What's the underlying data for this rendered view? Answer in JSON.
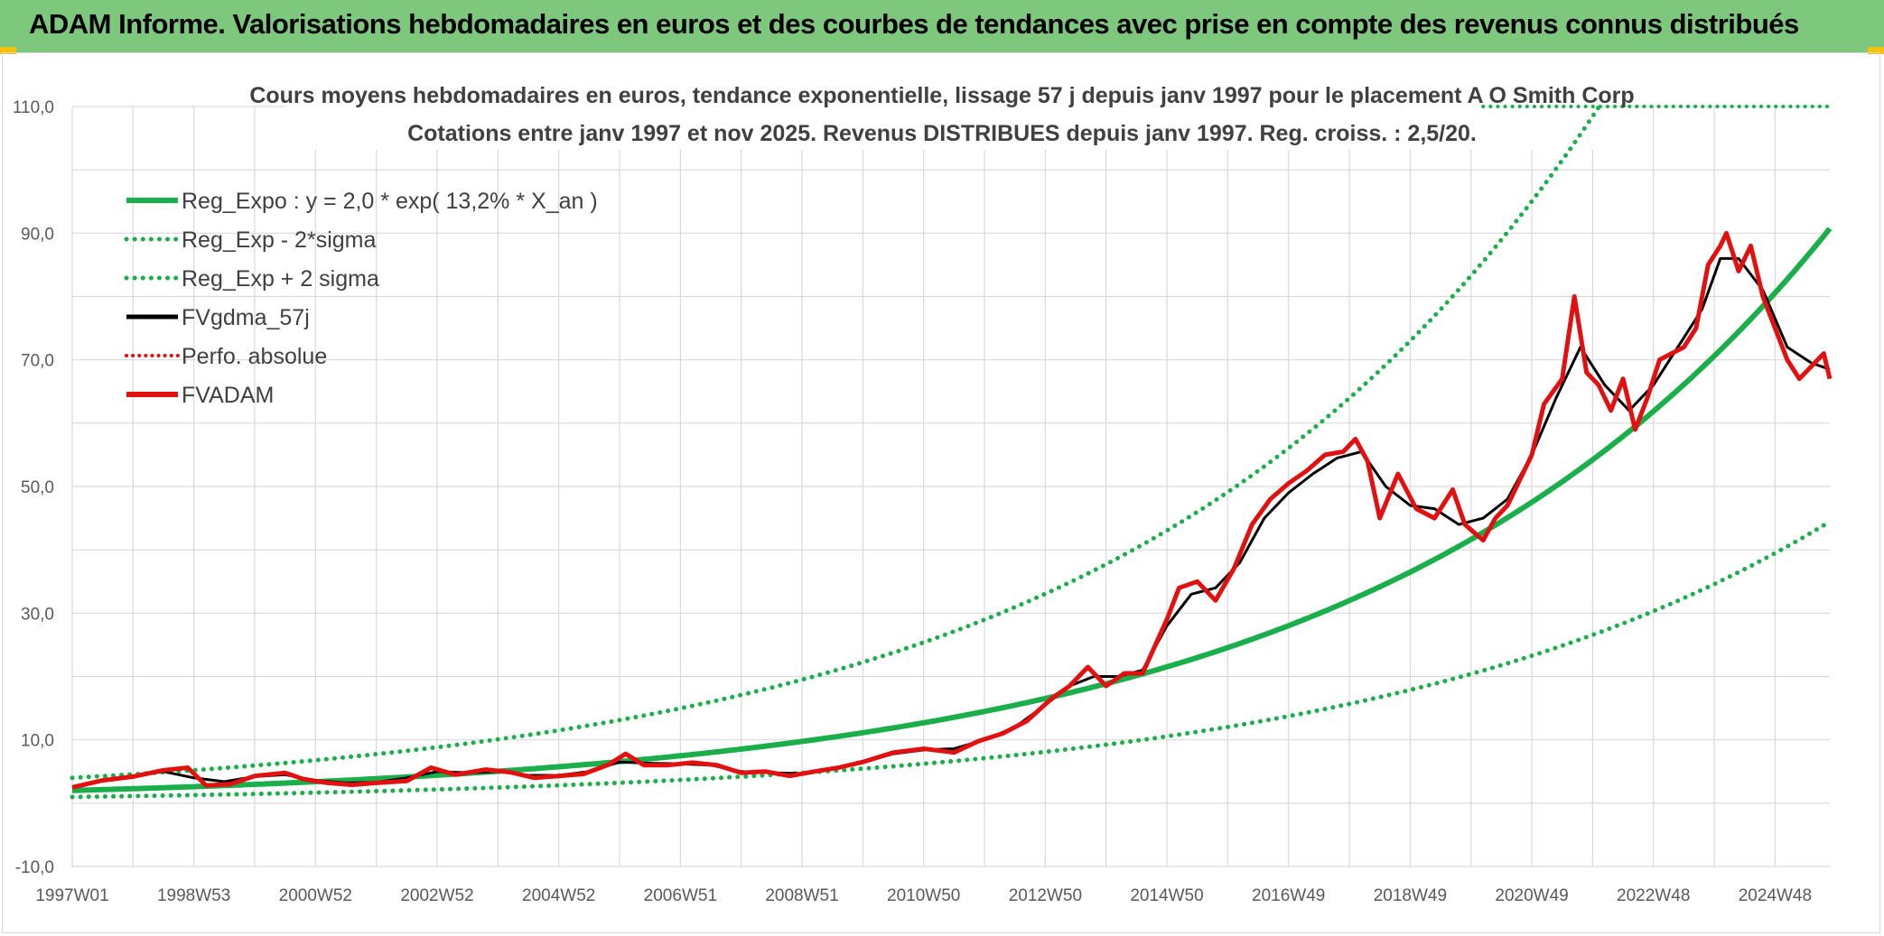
{
  "banner": {
    "title": "ADAM Informe. Valorisations hebdomadaires en euros et des courbes de tendances avec prise en compte des revenus connus distribués"
  },
  "colors": {
    "banner": "#7ec87e",
    "reg_expo": "#1aaf4b",
    "sigma": "#1aaf4b",
    "fvgdma": "#000000",
    "perfo": "#e31010",
    "fvadam": "#e31010",
    "grid": "#d9d9d9",
    "corner": "#f4c20d"
  },
  "chart_data": {
    "type": "line",
    "title": "Cours moyens hebdomadaires en euros, tendance exponentielle, lissage 57 j depuis janv 1997 pour le placement A O Smith Corp",
    "subtitle": "Cotations entre janv 1997 et nov 2025. Revenus DISTRIBUES depuis janv 1997. Reg. croiss. : 2,5/20.",
    "xlabel": "",
    "ylabel": "",
    "ylim": [
      -10,
      110
    ],
    "xlim": [
      1997.0,
      2025.9
    ],
    "grid": true,
    "legend_position": "top-left",
    "y_ticks": [
      "110,0",
      "90,0",
      "70,0",
      "50,0",
      "30,0",
      "10,0",
      "-10,0"
    ],
    "y_tick_values": [
      110,
      90,
      70,
      50,
      30,
      10,
      -10
    ],
    "x_ticks": [
      "1997W01",
      "1998W53",
      "2000W52",
      "2002W52",
      "2004W52",
      "2006W51",
      "2008W51",
      "2010W50",
      "2012W50",
      "2014W50",
      "2016W49",
      "2018W49",
      "2020W49",
      "2022W48",
      "2024W48"
    ],
    "x_tick_values": [
      1997.0,
      1999.0,
      2001.0,
      2003.0,
      2005.0,
      2007.0,
      2009.0,
      2011.0,
      2013.0,
      2015.0,
      2017.0,
      2019.0,
      2021.0,
      2023.0,
      2025.0
    ],
    "legend": [
      "Reg_Expo : y = 2,0 * exp( 13,2% *  X_an )",
      "Reg_Exp - 2*sigma",
      "Reg_Exp + 2 sigma",
      "FVgdma_57j",
      "Perfo. absolue",
      "FVADAM"
    ],
    "regression": {
      "a": 2.0,
      "rate": 0.132,
      "start_year": 1997.0,
      "lower_factor": 0.49,
      "upper_factor": 2.0
    },
    "series": [
      {
        "name": "FVADAM",
        "x": [
          1997.0,
          1997.5,
          1998.0,
          1998.5,
          1998.9,
          1999.2,
          1999.6,
          2000.0,
          2000.5,
          2000.8,
          2001.2,
          2001.6,
          2002.0,
          2002.5,
          2002.9,
          2003.3,
          2003.8,
          2004.2,
          2004.6,
          2005.0,
          2005.4,
          2005.8,
          2006.1,
          2006.4,
          2006.8,
          2007.2,
          2007.6,
          2008.0,
          2008.4,
          2008.8,
          2009.2,
          2009.6,
          2010.0,
          2010.5,
          2011.0,
          2011.5,
          2011.9,
          2012.3,
          2012.7,
          2013.1,
          2013.4,
          2013.7,
          2014.0,
          2014.3,
          2014.6,
          2015.0,
          2015.2,
          2015.5,
          2015.8,
          2016.1,
          2016.4,
          2016.7,
          2017.0,
          2017.3,
          2017.6,
          2017.9,
          2018.1,
          2018.3,
          2018.5,
          2018.8,
          2019.1,
          2019.4,
          2019.7,
          2019.9,
          2020.2,
          2020.4,
          2020.6,
          2020.8,
          2021.0,
          2021.2,
          2021.5,
          2021.7,
          2021.9,
          2022.1,
          2022.3,
          2022.5,
          2022.7,
          2022.9,
          2023.1,
          2023.3,
          2023.5,
          2023.7,
          2023.9,
          2024.1,
          2024.2,
          2024.4,
          2024.6,
          2024.8,
          2025.0,
          2025.2,
          2025.4,
          2025.6,
          2025.8,
          2025.9
        ],
        "y": [
          2.5,
          3.6,
          4.2,
          5.2,
          5.6,
          2.8,
          3.0,
          4.3,
          4.8,
          3.8,
          3.2,
          2.9,
          3.2,
          3.5,
          5.6,
          4.5,
          5.3,
          4.9,
          4.0,
          4.3,
          4.6,
          6.0,
          7.8,
          6.0,
          6.0,
          6.4,
          6.0,
          4.8,
          5.0,
          4.3,
          5.0,
          5.6,
          6.5,
          8.0,
          8.6,
          8.0,
          9.8,
          11.0,
          13.0,
          16.5,
          18.5,
          21.5,
          18.5,
          20.5,
          20.5,
          29.0,
          34.0,
          35.0,
          32.0,
          37.0,
          44.0,
          48.0,
          50.5,
          52.5,
          55.0,
          55.5,
          57.5,
          54.0,
          45.0,
          52.0,
          46.5,
          45.0,
          49.5,
          44.0,
          41.5,
          45.0,
          47.0,
          51.0,
          55.0,
          63.0,
          67.0,
          80.0,
          68.0,
          66.0,
          62.0,
          67.0,
          59.0,
          64.0,
          70.0,
          71.0,
          72.0,
          75.0,
          85.0,
          88.0,
          90.0,
          84.0,
          88.0,
          80.0,
          75.0,
          70.0,
          67.0,
          69.0,
          71.0,
          67.0
        ]
      },
      {
        "name": "FVgdma_57j",
        "x": [
          1997.0,
          1997.5,
          1998.0,
          1998.5,
          1999.0,
          1999.5,
          2000.0,
          2000.5,
          2001.0,
          2001.5,
          2002.0,
          2002.5,
          2003.0,
          2003.5,
          2004.0,
          2004.5,
          2005.0,
          2005.5,
          2006.0,
          2006.5,
          2007.0,
          2007.5,
          2008.0,
          2008.5,
          2009.0,
          2009.5,
          2010.0,
          2010.5,
          2011.0,
          2011.5,
          2012.0,
          2012.5,
          2013.0,
          2013.4,
          2013.8,
          2014.2,
          2014.6,
          2015.0,
          2015.4,
          2015.8,
          2016.2,
          2016.6,
          2017.0,
          2017.4,
          2017.8,
          2018.2,
          2018.6,
          2019.0,
          2019.4,
          2019.8,
          2020.2,
          2020.6,
          2021.0,
          2021.4,
          2021.8,
          2022.2,
          2022.6,
          2023.0,
          2023.4,
          2023.8,
          2024.1,
          2024.4,
          2024.8,
          2025.2,
          2025.6,
          2025.9
        ],
        "y": [
          2.5,
          3.5,
          4.2,
          5.0,
          4.0,
          3.4,
          4.2,
          4.5,
          3.6,
          3.2,
          3.3,
          4.0,
          5.0,
          4.8,
          5.0,
          4.4,
          4.4,
          5.0,
          6.5,
          6.3,
          6.2,
          6.0,
          5.0,
          4.8,
          4.7,
          5.4,
          6.4,
          7.8,
          8.4,
          8.6,
          10.0,
          12.0,
          15.5,
          18.5,
          20.0,
          20.0,
          21.0,
          28.0,
          33.0,
          34.0,
          38.0,
          45.0,
          49.0,
          52.0,
          54.5,
          55.5,
          50.0,
          47.0,
          46.5,
          44.0,
          45.0,
          48.0,
          55.0,
          64.0,
          72.0,
          66.0,
          62.0,
          66.0,
          72.0,
          78.0,
          86.0,
          86.0,
          81.0,
          72.0,
          69.5,
          68.5
        ]
      }
    ]
  }
}
